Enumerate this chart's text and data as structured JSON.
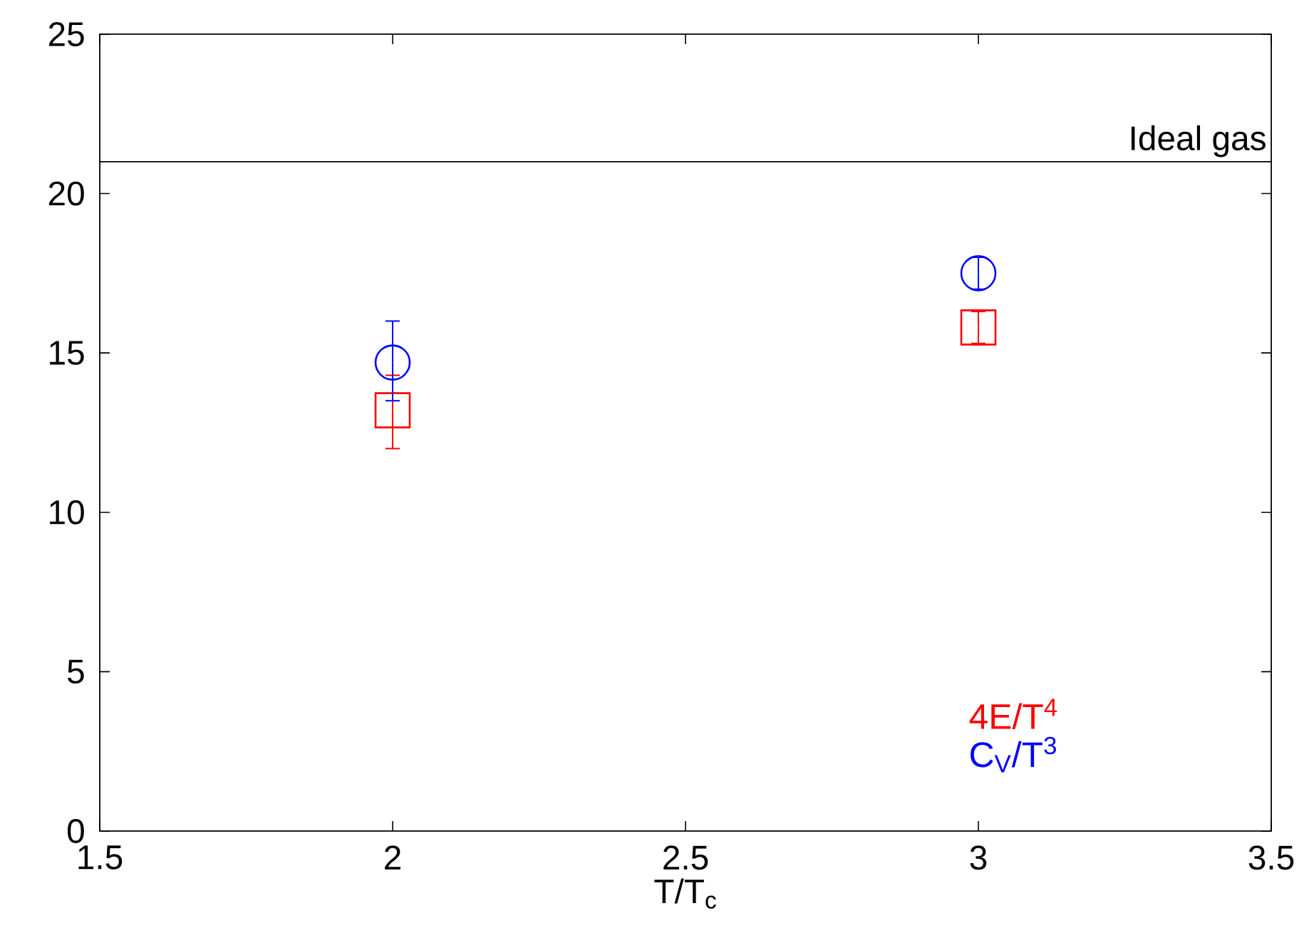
{
  "chart_data": {
    "type": "scatter",
    "xlabel": "T/T$_{c}$",
    "xlim": [
      1.5,
      3.5
    ],
    "xticks": [
      1.5,
      2,
      2.5,
      3,
      3.5
    ],
    "ylim": [
      0,
      25
    ],
    "yticks": [
      0,
      5,
      10,
      15,
      20,
      25
    ],
    "x": [
      2,
      3
    ],
    "grid": false,
    "legend": "bottom right",
    "ref_lines": [
      {
        "axis": "y",
        "value": 21,
        "label": "Ideal gas",
        "color": "#000000"
      }
    ],
    "series": [
      {
        "name": "4E/T$^{4}$",
        "color": "#ff0000",
        "marker": "square",
        "values": [
          13.2,
          15.8
        ],
        "errors": [
          [
            12.0,
            14.3
          ],
          [
            15.3,
            16.3
          ]
        ]
      },
      {
        "name": "C$_{V}$/T$^{3}$",
        "color": "#0000ff",
        "marker": "circle",
        "values": [
          14.7,
          17.5
        ],
        "errors": [
          [
            13.5,
            16.0
          ],
          [
            17.0,
            18.0
          ]
        ]
      }
    ]
  }
}
